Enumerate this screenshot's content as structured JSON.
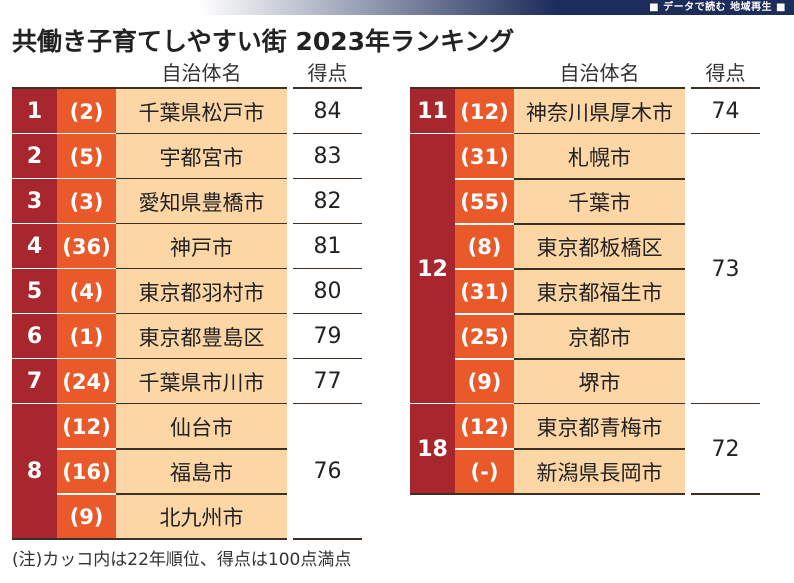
{
  "header_bar": {
    "label": "■ データで読む 地域再生 ■",
    "color": "#1c2d5a"
  },
  "title": "共働き子育てしやすい街 2023年ランキング",
  "columns": {
    "name": "自治体名",
    "score": "得点"
  },
  "colors": {
    "rank_bg": "#a8262e",
    "prev_bg": "#e9592a",
    "name_bg": "#fdd6a6"
  },
  "left_table": {
    "groups": [
      {
        "rank": "1",
        "score": "84",
        "rows": [
          {
            "prev": "(2)",
            "name": "千葉県松戸市"
          }
        ]
      },
      {
        "rank": "2",
        "score": "83",
        "rows": [
          {
            "prev": "(5)",
            "name": "宇都宮市"
          }
        ]
      },
      {
        "rank": "3",
        "score": "82",
        "rows": [
          {
            "prev": "(3)",
            "name": "愛知県豊橋市"
          }
        ]
      },
      {
        "rank": "4",
        "score": "81",
        "rows": [
          {
            "prev": "(36)",
            "name": "神戸市"
          }
        ]
      },
      {
        "rank": "5",
        "score": "80",
        "rows": [
          {
            "prev": "(4)",
            "name": "東京都羽村市"
          }
        ]
      },
      {
        "rank": "6",
        "score": "79",
        "rows": [
          {
            "prev": "(1)",
            "name": "東京都豊島区"
          }
        ]
      },
      {
        "rank": "7",
        "score": "77",
        "rows": [
          {
            "prev": "(24)",
            "name": "千葉県市川市"
          }
        ]
      },
      {
        "rank": "8",
        "score": "76",
        "rows": [
          {
            "prev": "(12)",
            "name": "仙台市"
          },
          {
            "prev": "(16)",
            "name": "福島市"
          },
          {
            "prev": "(9)",
            "name": "北九州市"
          }
        ]
      }
    ]
  },
  "right_table": {
    "groups": [
      {
        "rank": "11",
        "score": "74",
        "rows": [
          {
            "prev": "(12)",
            "name": "神奈川県厚木市"
          }
        ]
      },
      {
        "rank": "12",
        "score": "73",
        "rows": [
          {
            "prev": "(31)",
            "name": "札幌市"
          },
          {
            "prev": "(55)",
            "name": "千葉市"
          },
          {
            "prev": "(8)",
            "name": "東京都板橋区"
          },
          {
            "prev": "(31)",
            "name": "東京都福生市"
          },
          {
            "prev": "(25)",
            "name": "京都市"
          },
          {
            "prev": "(9)",
            "name": "堺市"
          }
        ]
      },
      {
        "rank": "18",
        "score": "72",
        "rows": [
          {
            "prev": "(12)",
            "name": "東京都青梅市"
          },
          {
            "prev": "(-)",
            "name": "新潟県長岡市"
          }
        ]
      }
    ]
  },
  "note": "(注)カッコ内は22年順位、得点は100点満点"
}
